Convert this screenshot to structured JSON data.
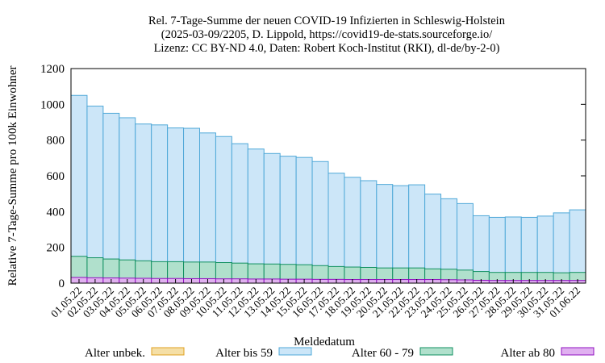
{
  "chart_data": {
    "type": "bar",
    "title": [
      "Rel. 7-Tage-Summe der neuen COVID-19 Infizierten in Schleswig-Holstein",
      "(2025-03-09/2205, D. Lippold, https://covid19-de-stats.sourceforge.io/",
      "Lizenz: CC BY-ND 4.0, Daten: Robert Koch-Institut (RKI), dl-de/by-2-0)"
    ],
    "x_label": "Meldedatum",
    "y_label": "Relative 7-Tage-Summe pro 100k Einwohner",
    "categories": [
      "01.05.22",
      "02.05.22",
      "03.05.22",
      "04.05.22",
      "05.05.22",
      "06.05.22",
      "07.05.22",
      "08.05.22",
      "09.05.22",
      "10.05.22",
      "11.05.22",
      "12.05.22",
      "13.05.22",
      "14.05.22",
      "15.05.22",
      "16.05.22",
      "17.05.22",
      "18.05.22",
      "19.05.22",
      "20.05.22",
      "21.05.22",
      "22.05.22",
      "23.05.22",
      "24.05.22",
      "25.05.22",
      "26.05.22",
      "27.05.22",
      "28.05.22",
      "29.05.22",
      "30.05.22",
      "31.05.22",
      "01.06.22"
    ],
    "series": [
      {
        "name": "Alter unbek.",
        "color": "#f5dfa6",
        "stroke": "#e0a020",
        "values": [
          0,
          0,
          0,
          0,
          0,
          0,
          0,
          0,
          0,
          0,
          0,
          0,
          0,
          0,
          0,
          0,
          0,
          0,
          0,
          0,
          0,
          0,
          0,
          0,
          0,
          0,
          0,
          0,
          0,
          0,
          0,
          0
        ]
      },
      {
        "name": "Alter bis 59",
        "color": "#cce6f8",
        "stroke": "#4fa8d8",
        "values": [
          1050,
          990,
          950,
          925,
          890,
          885,
          868,
          866,
          840,
          820,
          780,
          750,
          725,
          710,
          703,
          680,
          615,
          592,
          573,
          552,
          545,
          550,
          498,
          472,
          445,
          377,
          368,
          370,
          368,
          375,
          393,
          410
        ]
      },
      {
        "name": "Alter 60 - 79",
        "color": "#b0e0cc",
        "stroke": "#109060",
        "values": [
          150,
          142,
          135,
          130,
          125,
          120,
          120,
          118,
          118,
          115,
          112,
          108,
          107,
          105,
          103,
          98,
          93,
          90,
          88,
          85,
          85,
          85,
          80,
          78,
          73,
          65,
          60,
          60,
          60,
          60,
          58,
          60
        ]
      },
      {
        "name": "Alter ab 80",
        "color": "#e0b0f0",
        "stroke": "#9010c0",
        "values": [
          32,
          30,
          29,
          28,
          27,
          26,
          26,
          25,
          25,
          24,
          24,
          23,
          23,
          22,
          22,
          21,
          21,
          20,
          20,
          20,
          20,
          20,
          20,
          19,
          18,
          16,
          15,
          15,
          15,
          15,
          15,
          15
        ]
      }
    ],
    "ylim": [
      0,
      1200
    ],
    "yticks": [
      0,
      200,
      400,
      600,
      800,
      1000,
      1200
    ]
  }
}
